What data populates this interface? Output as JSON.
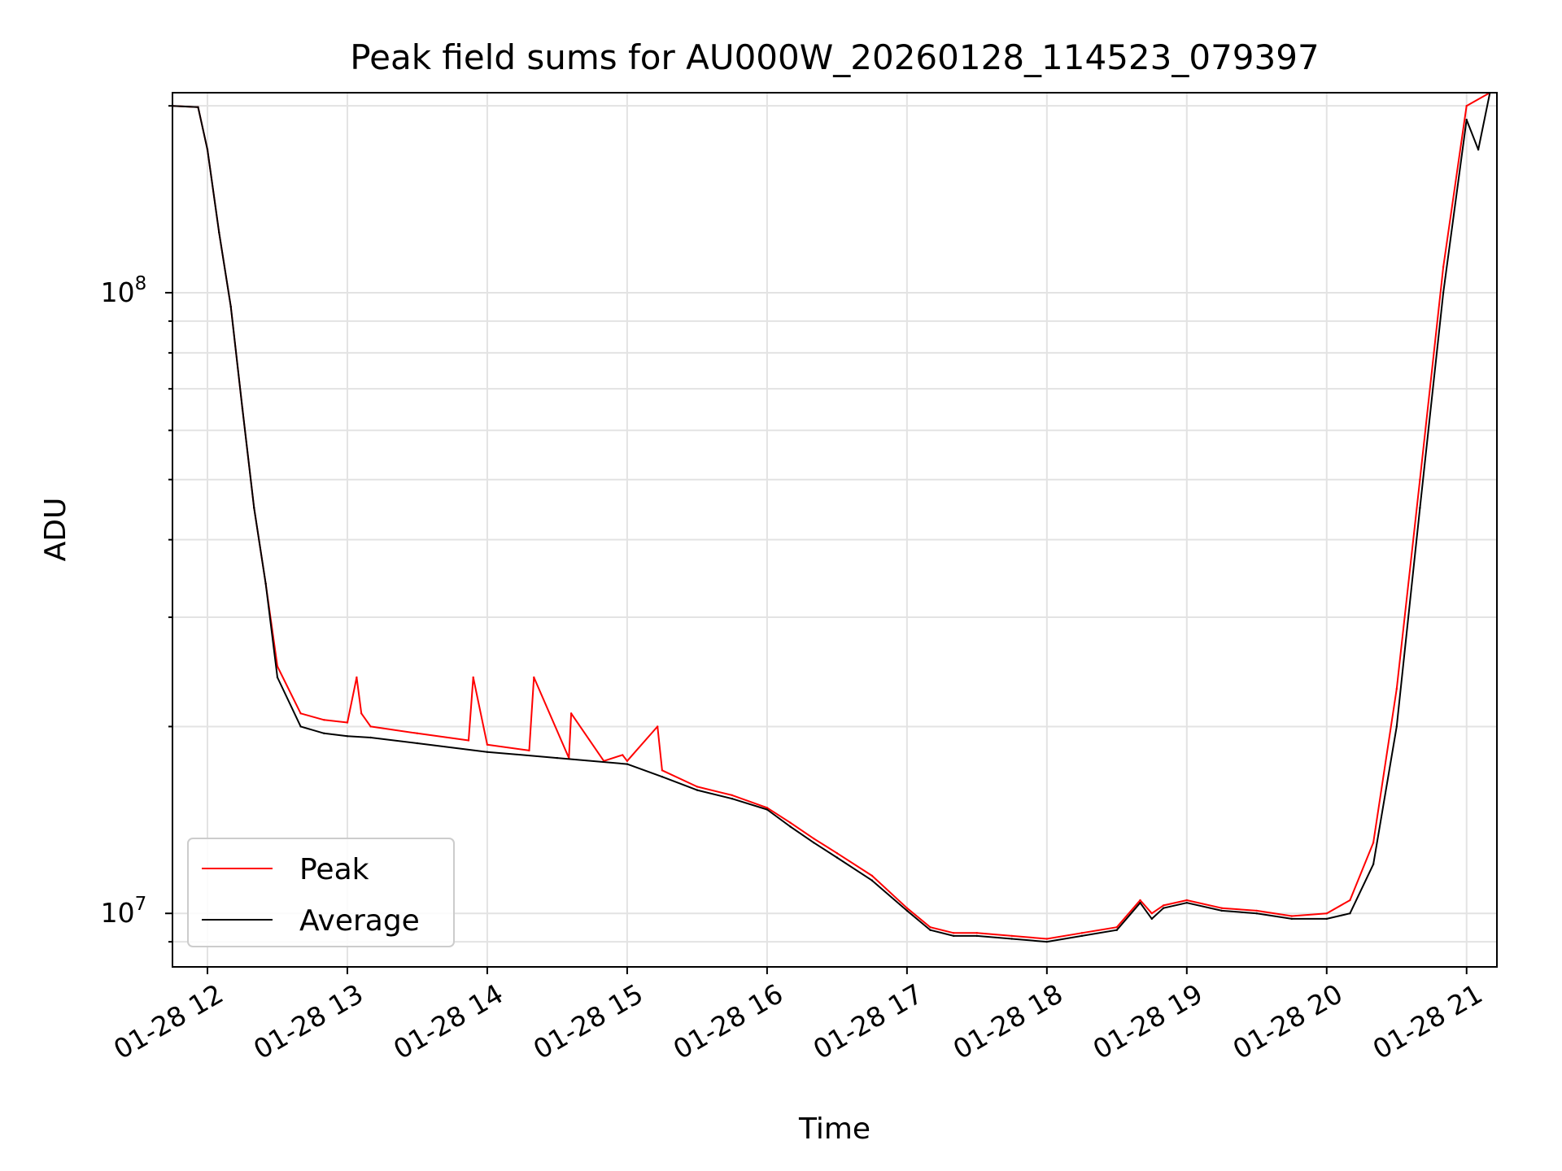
{
  "chart_data": {
    "type": "line",
    "title": "Peak field sums for AU000W_20260128_114523_079397",
    "xlabel": "Time",
    "ylabel": "ADU",
    "y_scale": "log",
    "ylim": [
      8200000,
      210000000
    ],
    "xlim": [
      "2026-01-28 11:45",
      "2026-01-28 21:13"
    ],
    "grid": true,
    "legend_position": "lower-left",
    "x_tick_labels": [
      "01-28 12",
      "01-28 13",
      "01-28 14",
      "01-28 15",
      "01-28 16",
      "01-28 17",
      "01-28 18",
      "01-28 19",
      "01-28 20",
      "01-28 21"
    ],
    "x_ticks": [
      "2026-01-28 12:00",
      "2026-01-28 13:00",
      "2026-01-28 14:00",
      "2026-01-28 15:00",
      "2026-01-28 16:00",
      "2026-01-28 17:00",
      "2026-01-28 18:00",
      "2026-01-28 19:00",
      "2026-01-28 20:00",
      "2026-01-28 21:00"
    ],
    "y_tick_labels": [
      {
        "base": "10",
        "exp": "7",
        "value": 10000000
      },
      {
        "base": "10",
        "exp": "8",
        "value": 100000000
      }
    ],
    "series": [
      {
        "name": "Peak",
        "color": "#ff0000",
        "x": [
          "2026-01-28 11:45",
          "2026-01-28 11:56",
          "2026-01-28 12:00",
          "2026-01-28 12:05",
          "2026-01-28 12:10",
          "2026-01-28 12:15",
          "2026-01-28 12:20",
          "2026-01-28 12:25",
          "2026-01-28 12:30",
          "2026-01-28 12:40",
          "2026-01-28 12:50",
          "2026-01-28 13:00",
          "2026-01-28 13:04",
          "2026-01-28 13:06",
          "2026-01-28 13:10",
          "2026-01-28 13:30",
          "2026-01-28 13:52",
          "2026-01-28 13:54",
          "2026-01-28 14:00",
          "2026-01-28 14:18",
          "2026-01-28 14:20",
          "2026-01-28 14:35",
          "2026-01-28 14:36",
          "2026-01-28 14:50",
          "2026-01-28 14:58",
          "2026-01-28 15:00",
          "2026-01-28 15:13",
          "2026-01-28 15:15",
          "2026-01-28 15:30",
          "2026-01-28 15:45",
          "2026-01-28 16:00",
          "2026-01-28 16:10",
          "2026-01-28 16:20",
          "2026-01-28 16:30",
          "2026-01-28 16:45",
          "2026-01-28 17:00",
          "2026-01-28 17:10",
          "2026-01-28 17:20",
          "2026-01-28 17:30",
          "2026-01-28 17:45",
          "2026-01-28 18:00",
          "2026-01-28 18:15",
          "2026-01-28 18:30",
          "2026-01-28 18:40",
          "2026-01-28 18:45",
          "2026-01-28 18:50",
          "2026-01-28 19:00",
          "2026-01-28 19:15",
          "2026-01-28 19:30",
          "2026-01-28 19:45",
          "2026-01-28 20:00",
          "2026-01-28 20:10",
          "2026-01-28 20:20",
          "2026-01-28 20:30",
          "2026-01-28 20:40",
          "2026-01-28 20:50",
          "2026-01-28 21:00",
          "2026-01-28 21:10"
        ],
        "values": [
          200000000,
          199000000,
          170000000,
          125000000,
          95000000,
          65000000,
          45000000,
          34000000,
          25000000,
          21000000,
          20500000,
          20300000,
          24000000,
          21000000,
          20000000,
          19500000,
          19000000,
          24000000,
          18700000,
          18300000,
          24000000,
          17800000,
          21000000,
          17600000,
          18000000,
          17600000,
          20000000,
          17000000,
          16000000,
          15500000,
          14800000,
          14000000,
          13200000,
          12500000,
          11500000,
          10200000,
          9500000,
          9300000,
          9300000,
          9200000,
          9100000,
          9300000,
          9500000,
          10500000,
          10000000,
          10300000,
          10500000,
          10200000,
          10100000,
          9900000,
          10000000,
          10500000,
          13000000,
          23000000,
          50000000,
          110000000,
          200000000,
          220000000
        ]
      },
      {
        "name": "Average",
        "color": "#000000",
        "x": [
          "2026-01-28 11:45",
          "2026-01-28 11:56",
          "2026-01-28 12:00",
          "2026-01-28 12:05",
          "2026-01-28 12:10",
          "2026-01-28 12:15",
          "2026-01-28 12:20",
          "2026-01-28 12:25",
          "2026-01-28 12:30",
          "2026-01-28 12:40",
          "2026-01-28 12:50",
          "2026-01-28 13:00",
          "2026-01-28 13:10",
          "2026-01-28 13:30",
          "2026-01-28 14:00",
          "2026-01-28 14:30",
          "2026-01-28 15:00",
          "2026-01-28 15:15",
          "2026-01-28 15:30",
          "2026-01-28 15:45",
          "2026-01-28 16:00",
          "2026-01-28 16:10",
          "2026-01-28 16:20",
          "2026-01-28 16:30",
          "2026-01-28 16:45",
          "2026-01-28 17:00",
          "2026-01-28 17:10",
          "2026-01-28 17:20",
          "2026-01-28 17:30",
          "2026-01-28 17:45",
          "2026-01-28 18:00",
          "2026-01-28 18:15",
          "2026-01-28 18:30",
          "2026-01-28 18:40",
          "2026-01-28 18:45",
          "2026-01-28 18:50",
          "2026-01-28 19:00",
          "2026-01-28 19:15",
          "2026-01-28 19:30",
          "2026-01-28 19:45",
          "2026-01-28 20:00",
          "2026-01-28 20:10",
          "2026-01-28 20:20",
          "2026-01-28 20:30",
          "2026-01-28 20:40",
          "2026-01-28 20:50",
          "2026-01-28 21:00",
          "2026-01-28 21:05",
          "2026-01-28 21:10"
        ],
        "values": [
          200000000,
          199000000,
          170000000,
          125000000,
          95000000,
          65000000,
          45000000,
          34000000,
          24000000,
          20000000,
          19500000,
          19300000,
          19200000,
          18800000,
          18200000,
          17800000,
          17400000,
          16600000,
          15800000,
          15300000,
          14700000,
          13800000,
          13000000,
          12300000,
          11300000,
          10100000,
          9400000,
          9200000,
          9200000,
          9100000,
          9000000,
          9200000,
          9400000,
          10400000,
          9800000,
          10200000,
          10400000,
          10100000,
          10000000,
          9800000,
          9800000,
          10000000,
          12000000,
          20000000,
          45000000,
          100000000,
          190000000,
          170000000,
          220000000
        ]
      }
    ]
  }
}
